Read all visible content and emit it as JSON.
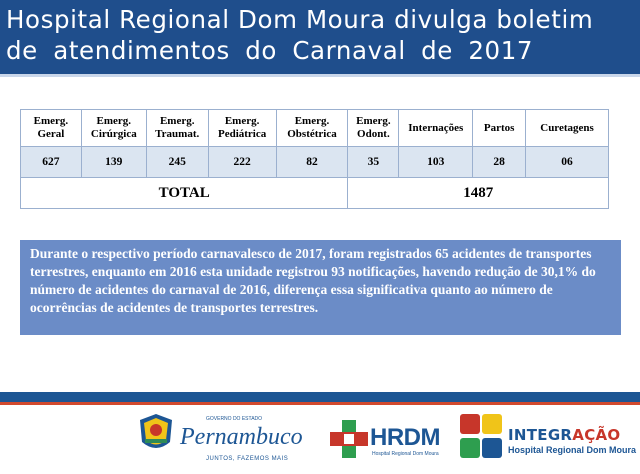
{
  "header": {
    "title_line1": "Hospital Regional Dom Moura divulga boletim",
    "title_line2": "de atendimentos do Carnaval de 2017"
  },
  "table": {
    "columns": [
      {
        "line1": "Emerg.",
        "line2": "Geral"
      },
      {
        "line1": "Emerg.",
        "line2": "Cirúrgica"
      },
      {
        "line1": "Emerg.",
        "line2": "Traumat."
      },
      {
        "line1": "Emerg.",
        "line2": "Pediátrica"
      },
      {
        "line1": "Emerg.",
        "line2": "Obstétrica"
      },
      {
        "line1": "Emerg.",
        "line2": "Odont."
      },
      {
        "line1": "Internações",
        "line2": ""
      },
      {
        "line1": "Partos",
        "line2": ""
      },
      {
        "line1": "Curetagens",
        "line2": ""
      }
    ],
    "values": [
      "627",
      "139",
      "245",
      "222",
      "82",
      "35",
      "103",
      "28",
      "06"
    ],
    "total_label": "TOTAL",
    "total_value": "1487"
  },
  "note": {
    "text": "Durante o respectivo período carnavalesco de 2017, foram registrados 65 acidentes de transportes terrestres, enquanto em 2016 esta unidade registrou 93 notificações, havendo redução de 30,1% do número de acidentes do carnaval de 2016, diferença essa significativa quanto ao número de ocorrências de acidentes de transportes terrestres."
  },
  "footer": {
    "pernambuco": {
      "gov": "GOVERNO DO ESTADO",
      "name": "Pernambuco",
      "slogan": "JUNTOS, FAZEMOS MAIS"
    },
    "hrdm": {
      "name": "HRDM",
      "sub": "Hospital Regional Dom Moura"
    },
    "integracao": {
      "name_main": "INTEGR",
      "name_accent": "AÇÃO",
      "sub": "Hospital Regional Dom Moura"
    }
  },
  "colors": {
    "header_bg": "#1f4e8c",
    "note_bg": "#6b8cc7",
    "table_value_row": "#dbe5f1",
    "accent_red": "#c7362a"
  }
}
